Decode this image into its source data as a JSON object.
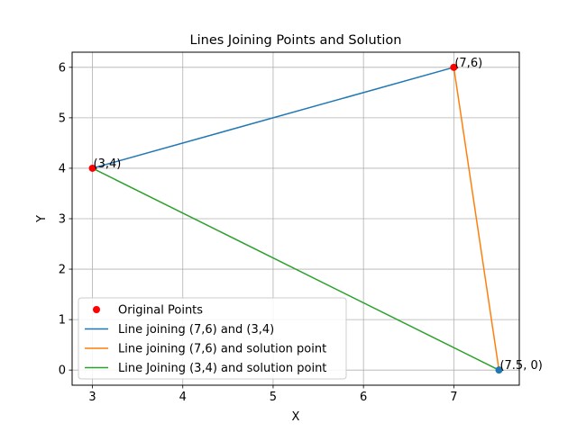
{
  "chart_data": {
    "type": "line",
    "title": "Lines Joining Points and Solution",
    "xlabel": "X",
    "ylabel": "Y",
    "xlim": [
      2.775,
      7.725
    ],
    "ylim": [
      -0.3,
      6.3
    ],
    "xticks": [
      3,
      4,
      5,
      6,
      7
    ],
    "yticks": [
      0,
      1,
      2,
      3,
      4,
      5,
      6
    ],
    "grid": true,
    "legend_position": "lower-left",
    "points": [
      {
        "x": 3,
        "y": 4,
        "label": "(3,4)",
        "color": "#ff0000"
      },
      {
        "x": 7,
        "y": 6,
        "label": "(7,6)",
        "color": "#ff0000"
      },
      {
        "x": 7.5,
        "y": 0,
        "label": "(7.5, 0)",
        "color": "#1f77b4"
      }
    ],
    "series": [
      {
        "name": "Original Points",
        "kind": "marker",
        "color": "#ff0000",
        "x": [
          7,
          3
        ],
        "y": [
          6,
          4
        ]
      },
      {
        "name": "Line joining (7,6) and (3,4)",
        "kind": "line",
        "color": "#1f77b4",
        "x": [
          7,
          3
        ],
        "y": [
          6,
          4
        ]
      },
      {
        "name": "Line joining (7,6) and solution point",
        "kind": "line",
        "color": "#ff7f0e",
        "x": [
          7,
          7.5
        ],
        "y": [
          6,
          0
        ]
      },
      {
        "name": "Line Joining (3,4) and solution point",
        "kind": "line",
        "color": "#2ca02c",
        "x": [
          3,
          7.5
        ],
        "y": [
          4,
          0
        ]
      }
    ]
  }
}
